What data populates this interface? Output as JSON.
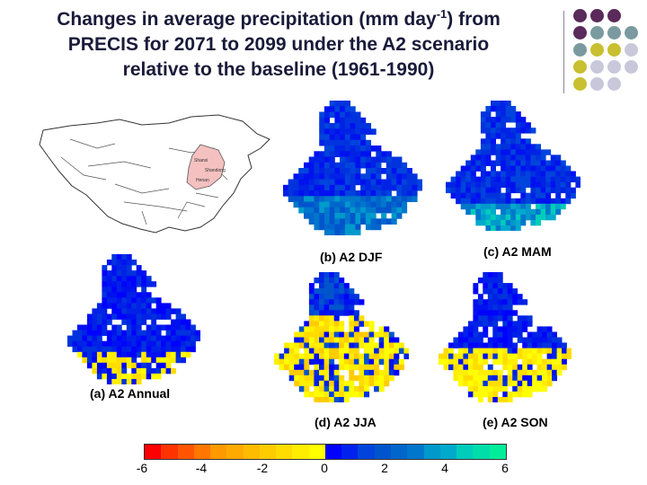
{
  "title": {
    "line1_pre": "Changes in average precipitation (mm day",
    "line1_sup": "-1",
    "line1_post": ") from",
    "line2": "PRECIS for 2071 to 2099 under the A2 scenario",
    "line3": "relative to the baseline (1961-1990)"
  },
  "map_labels": [
    "Shanxi",
    "Shandong",
    "Henan"
  ],
  "panels": {
    "annual": "(a) A2 Annual",
    "djf": "(b) A2 DJF",
    "mam": "(c) A2 MAM",
    "jja": "(d) A2 JJA",
    "son": "(e) A2 SON"
  },
  "colorbar": {
    "ticks": [
      "-6",
      "-4",
      "-2",
      "0",
      "2",
      "4",
      "6"
    ],
    "colors": [
      "#ff0000",
      "#ff3300",
      "#ff5500",
      "#ff7700",
      "#ff9900",
      "#ffaa00",
      "#ffbb00",
      "#ffcc00",
      "#ffdd00",
      "#ffee00",
      "#ffff00",
      "#0000ff",
      "#0022ee",
      "#0044dd",
      "#0055cc",
      "#0066cc",
      "#0077cc",
      "#0099cc",
      "#00aacc",
      "#00ccbb",
      "#00ddaa",
      "#00ee99"
    ]
  },
  "colors": {
    "title": "#1a1a3a",
    "dot_purple": "#5a2a5a",
    "dot_teal": "#7a9aa0",
    "dot_olive": "#c8c030",
    "dot_lavender": "#c8c8da"
  }
}
